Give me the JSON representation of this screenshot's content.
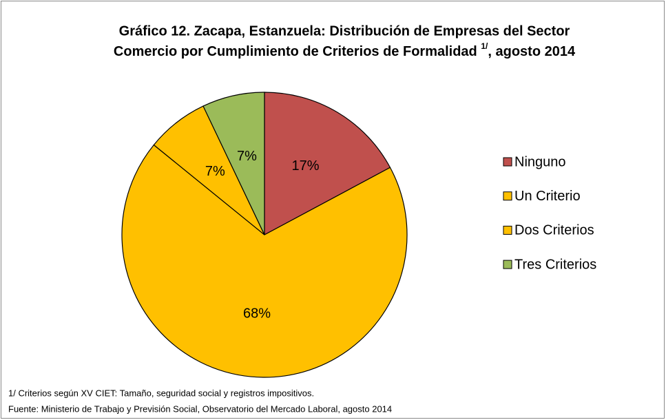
{
  "chart_data": {
    "type": "pie",
    "title_lines": [
      "Gráfico 12. Zacapa, Estanzuela: Distribución de Empresas del Sector",
      "Comercio por Cumplimiento de Criterios de Formalidad"
    ],
    "title_note": "1/",
    "title_end": ", agosto 2014",
    "categories": [
      "Ninguno",
      "Un Criterio",
      "Dos Criterios",
      "Tres Criterios"
    ],
    "values": [
      17,
      68,
      7,
      7
    ],
    "value_labels": [
      "17%",
      "68%",
      "7%",
      "7%"
    ],
    "colors": [
      "#c0504d",
      "#ffc000",
      "#ffc000",
      "#9bbb59"
    ],
    "legend": "right",
    "notes": [
      "1/ Criterios según XV CIET: Tamaño, seguridad social y registros impositivos.",
      "Fuente: Ministerio de Trabajo y Previsión Social, Observatorio del Mercado Laboral, agosto 2014"
    ]
  }
}
